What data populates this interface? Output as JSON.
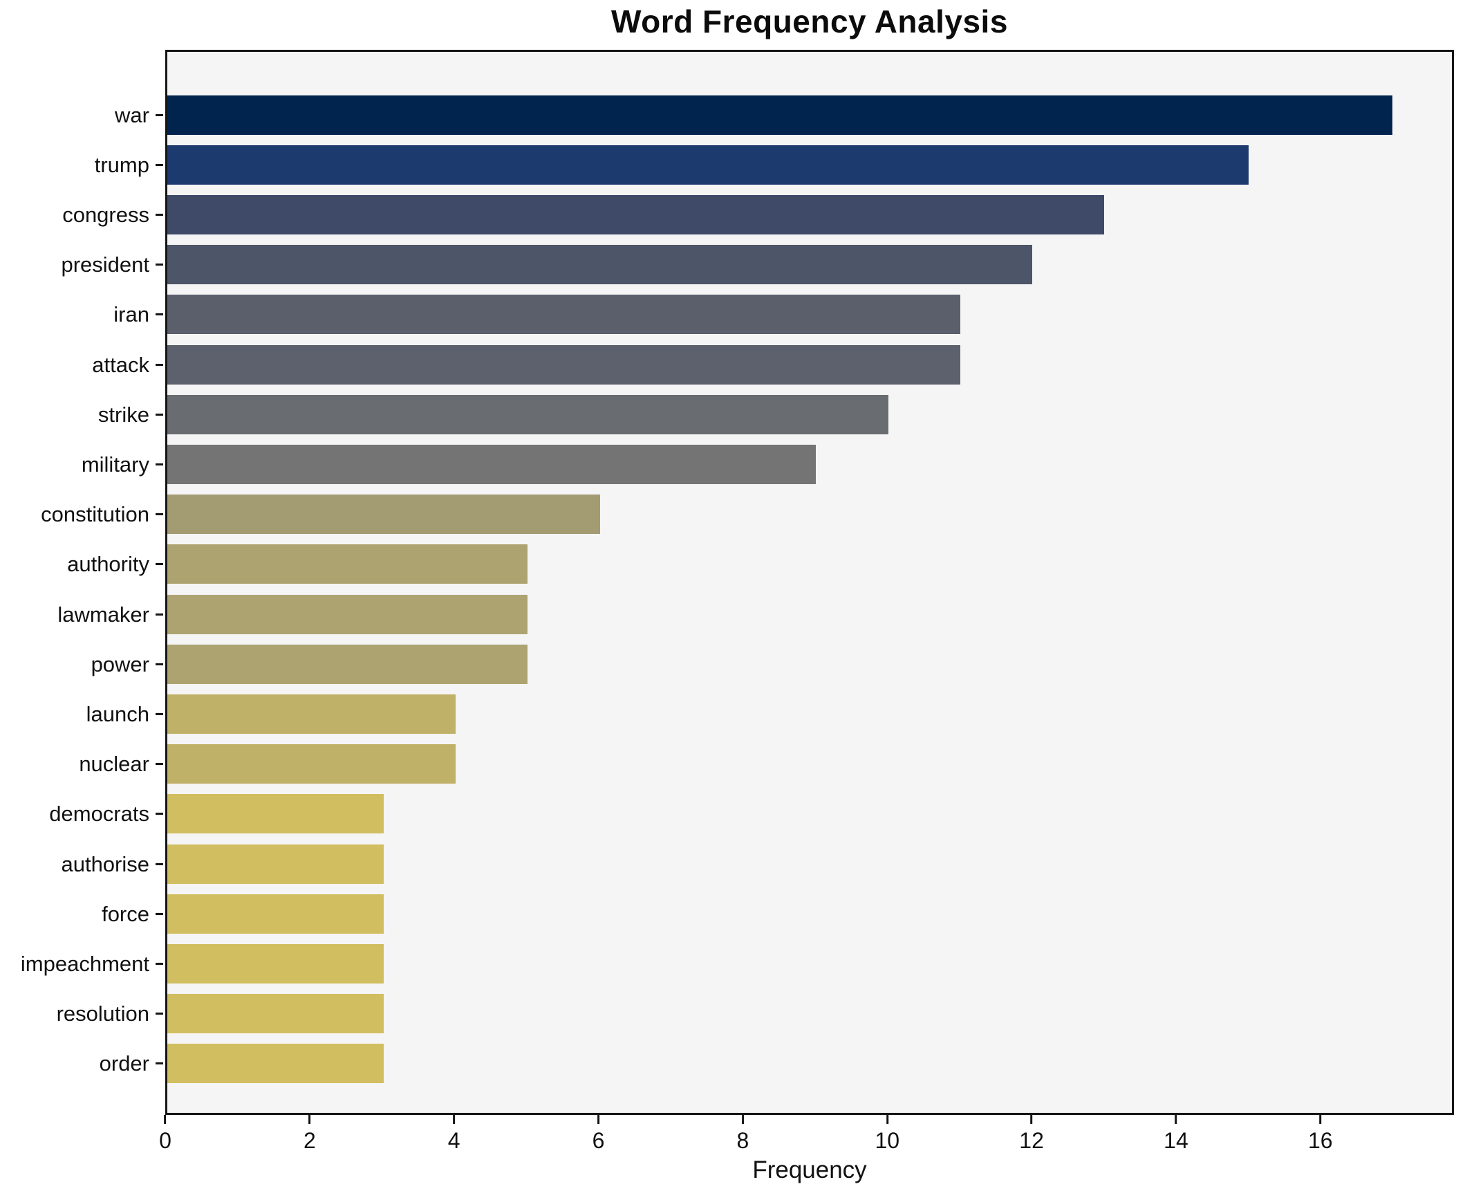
{
  "chart_data": {
    "type": "bar",
    "orientation": "horizontal",
    "title": "Word Frequency Analysis",
    "xlabel": "Frequency",
    "ylabel": "",
    "categories": [
      "war",
      "trump",
      "congress",
      "president",
      "iran",
      "attack",
      "strike",
      "military",
      "constitution",
      "authority",
      "lawmaker",
      "power",
      "launch",
      "nuclear",
      "democrats",
      "authorise",
      "force",
      "impeachment",
      "resolution",
      "order"
    ],
    "values": [
      17,
      15,
      13,
      12,
      11,
      11,
      10,
      9,
      6,
      5,
      5,
      5,
      4,
      4,
      3,
      3,
      3,
      3,
      3,
      3
    ],
    "bar_colors": [
      "#01244f",
      "#1c3a6e",
      "#3e4a68",
      "#4d5569",
      "#5b5f6c",
      "#5d616d",
      "#696c70",
      "#747474",
      "#a39b72",
      "#ada371",
      "#ada371",
      "#ada371",
      "#c0b169",
      "#c0b169",
      "#d1be60",
      "#d1be60",
      "#d1be60",
      "#d1be60",
      "#d1be60",
      "#d1be60"
    ],
    "xlim": [
      0,
      17.85
    ],
    "x_ticks": [
      0,
      2,
      4,
      6,
      8,
      10,
      12,
      14,
      16
    ],
    "grid": false,
    "legend_position": "none",
    "colors": {
      "plot_bg": "#f5f5f6",
      "figure_bg": "#ffffff",
      "axis": "#151515",
      "text": "#111111"
    }
  }
}
